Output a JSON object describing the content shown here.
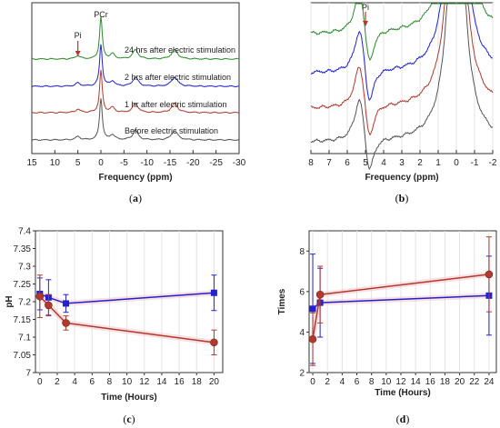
{
  "chart_data": [
    {
      "type": "line",
      "panel": "a",
      "caption_letter": "a",
      "xlabel": "Frequency (ppm)",
      "xlim": [
        15,
        -30
      ],
      "x_ticks": [
        15,
        10,
        5,
        0,
        -5,
        -10,
        -15,
        -20,
        -25,
        -30
      ],
      "peak_labels": [
        {
          "text": "PCr",
          "x": 0
        },
        {
          "text": "Pi",
          "x": 5
        }
      ],
      "series": [
        {
          "name": "Before electric stimulation",
          "color": "#555555"
        },
        {
          "name": "1 hr after electric stimulation",
          "color": "#b03a2e"
        },
        {
          "name": "2 hrs after electric stimulation",
          "color": "#2222cc"
        },
        {
          "name": "24 hrs after electric stimulation",
          "color": "#2e8b2e"
        }
      ],
      "peaks": [
        {
          "x": 0,
          "amplitude": 1.0,
          "width": 0.35
        },
        {
          "x": 5,
          "amplitude": 0.08,
          "width": 0.6
        },
        {
          "x": -2.5,
          "amplitude": 0.12,
          "width": 0.6
        },
        {
          "x": -7.5,
          "amplitude": 0.22,
          "width": 0.7
        },
        {
          "x": -16,
          "amplitude": 0.22,
          "width": 0.8
        }
      ]
    },
    {
      "type": "line",
      "panel": "b",
      "caption_letter": "b",
      "xlabel": "Frequency (ppm)",
      "xlim": [
        8,
        -2
      ],
      "x_ticks": [
        8,
        7,
        6,
        5,
        4,
        3,
        2,
        1,
        0,
        -1,
        -2
      ],
      "peak_labels": [
        {
          "text": "Pi",
          "x": 5
        }
      ],
      "series": [
        {
          "color": "#555555"
        },
        {
          "color": "#b03a2e"
        },
        {
          "color": "#2222cc"
        },
        {
          "color": "#2e8b2e"
        }
      ]
    },
    {
      "type": "line",
      "panel": "c",
      "caption_letter": "c",
      "xlabel": "Time (Hours)",
      "ylabel": "pH",
      "xlim": [
        -0.5,
        21
      ],
      "ylim": [
        7.0,
        7.4
      ],
      "x_ticks": [
        0,
        2,
        4,
        6,
        8,
        10,
        12,
        14,
        16,
        18,
        20
      ],
      "y_ticks": [
        "7",
        "7.05",
        "7.1",
        "7.15",
        "7.2",
        "7.25",
        "7.3",
        "7.35",
        "7.4"
      ],
      "x": [
        0,
        1,
        3,
        20
      ],
      "series": [
        {
          "color": "#2222cc",
          "marker": "square",
          "values": [
            7.222,
            7.212,
            7.195,
            7.225
          ],
          "errors": [
            0.045,
            0.05,
            0.025,
            0.05
          ]
        },
        {
          "color": "#b03a2e",
          "marker": "circle",
          "values": [
            7.215,
            7.19,
            7.14,
            7.085
          ],
          "errors": [
            0.06,
            0.03,
            0.02,
            0.035
          ]
        }
      ]
    },
    {
      "type": "line",
      "panel": "d",
      "caption_letter": "d",
      "xlabel": "Time (Hours)",
      "ylabel": "Times",
      "xlim": [
        -0.5,
        25
      ],
      "ylim": [
        2,
        9
      ],
      "x_ticks": [
        0,
        2,
        4,
        6,
        8,
        10,
        12,
        14,
        16,
        18,
        20,
        22,
        24
      ],
      "y_ticks": [
        2,
        4,
        6,
        8
      ],
      "x": [
        0,
        1,
        24
      ],
      "series": [
        {
          "color": "#2222cc",
          "marker": "square",
          "values": [
            5.15,
            5.45,
            5.8
          ],
          "errors": [
            2.7,
            1.7,
            1.95
          ]
        },
        {
          "color": "#b03a2e",
          "marker": "circle",
          "values": [
            3.65,
            5.85,
            6.85
          ],
          "errors": [
            1.3,
            1.4,
            1.85
          ]
        }
      ]
    }
  ]
}
